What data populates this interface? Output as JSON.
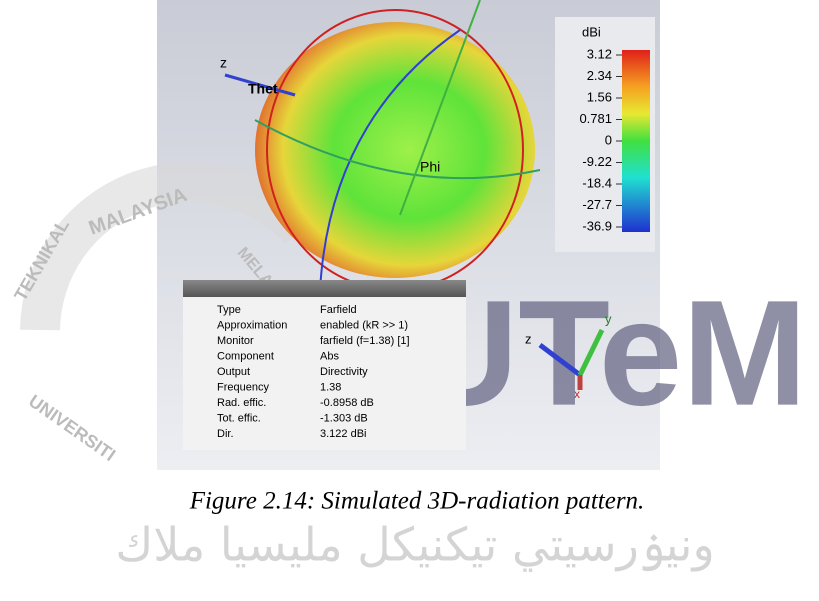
{
  "figure": {
    "colorbar": {
      "unit": "dBi",
      "labels": [
        "3.12",
        "2.34",
        "1.56",
        "0.781",
        "0",
        "-9.22",
        "-18.4",
        "-27.7",
        "-36.9"
      ]
    },
    "axis_labels": {
      "z_top": "z",
      "theta": "Thet",
      "phi": "Phi",
      "triad_z": "z",
      "triad_y": "y",
      "triad_x": "x"
    },
    "info": {
      "rows": [
        [
          "Type",
          "Farfield"
        ],
        [
          "Approximation",
          "enabled (kR >> 1)"
        ],
        [
          "Monitor",
          "farfield (f=1.38) [1]"
        ],
        [
          "Component",
          "Abs"
        ],
        [
          "Output",
          "Directivity"
        ],
        [
          "Frequency",
          "1.38"
        ],
        [
          "Rad. effic.",
          "-0.8958 dB"
        ],
        [
          "Tot. effic.",
          "-1.303 dB"
        ],
        [
          "Dir.",
          "3.122 dBi"
        ]
      ]
    }
  },
  "watermark": {
    "logo": "UTeM",
    "arc_texts": [
      "MALAYSIA",
      "MELAKA",
      "TEKNIKAL",
      "UNIVERSITI"
    ],
    "jawi": "ونيۏرسيتي تيکنيکل مليسيا ملاك"
  },
  "caption": "Figure 2.14: Simulated 3D-radiation pattern."
}
